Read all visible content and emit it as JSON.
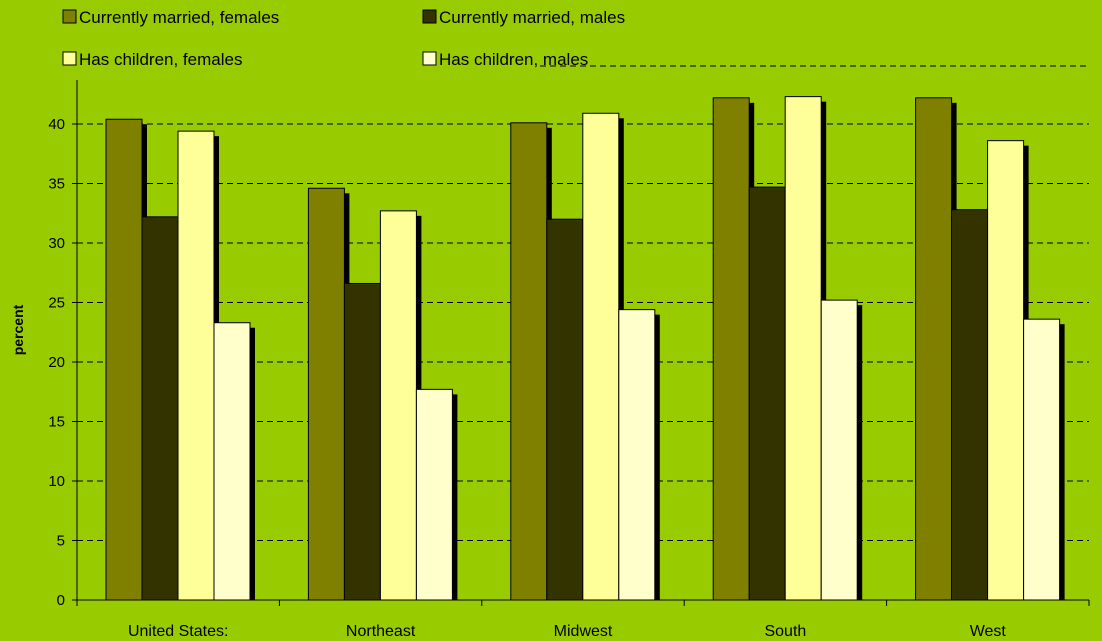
{
  "colors": {
    "background": "#99cc00",
    "series": [
      "#808000",
      "#333300",
      "#ffff99",
      "#ffffcc"
    ],
    "shadow": "#000000",
    "grid": "#000000"
  },
  "chart_data": {
    "type": "bar",
    "categories": [
      "United States:",
      "Northeast",
      "Midwest",
      "South",
      "West"
    ],
    "series": [
      {
        "name": "Currently married, females",
        "values": [
          40.4,
          34.6,
          40.1,
          42.2,
          42.2
        ]
      },
      {
        "name": "Currently married, males",
        "values": [
          32.2,
          26.6,
          32.0,
          34.7,
          32.8
        ]
      },
      {
        "name": "Has children, females",
        "values": [
          39.4,
          32.7,
          40.9,
          42.3,
          38.6
        ]
      },
      {
        "name": "Has children, males",
        "values": [
          23.3,
          17.7,
          24.4,
          25.2,
          23.6
        ]
      }
    ],
    "ylabel": "percent",
    "ylim": [
      0,
      43
    ],
    "yticks": [
      0,
      5,
      10,
      15,
      20,
      25,
      30,
      35,
      40
    ],
    "grid": true,
    "legend": "top"
  }
}
